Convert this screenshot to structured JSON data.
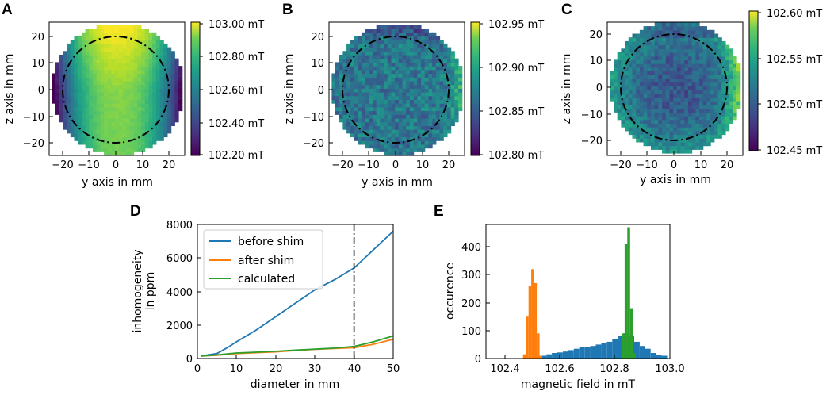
{
  "panels": [
    {
      "label": "A",
      "xlabel": "y axis in mm",
      "ylabel": "z axis in mm",
      "xticks": [
        "−20",
        "−10",
        "0",
        "10",
        "20"
      ],
      "yticks": [
        "20",
        "10",
        "0",
        "−10",
        "−20"
      ],
      "colorbar": [
        "103.00 mT",
        "102.80 mT",
        "102.60 mT",
        "102.40 mT",
        "102.20 mT"
      ]
    },
    {
      "label": "B",
      "xlabel": "y axis in mm",
      "ylabel": "z axis in mm",
      "xticks": [
        "−20",
        "−10",
        "0",
        "10",
        "20"
      ],
      "yticks": [
        "20",
        "10",
        "0",
        "−10",
        "−20"
      ],
      "colorbar": [
        "102.95 mT",
        "102.90 mT",
        "102.85 mT",
        "102.80 mT"
      ]
    },
    {
      "label": "C",
      "xlabel": "y axis in mm",
      "ylabel": "z axis in mm",
      "xticks": [
        "−20",
        "−10",
        "0",
        "10",
        "20"
      ],
      "yticks": [
        "20",
        "10",
        "0",
        "−10",
        "−20"
      ],
      "colorbar": [
        "102.60 mT",
        "102.55 mT",
        "102.50 mT",
        "102.45 mT"
      ]
    }
  ],
  "chart_data": [
    {
      "panel": "A",
      "type": "heatmap",
      "title": "",
      "xlabel": "y axis in mm",
      "ylabel": "z axis in mm",
      "xlim": [
        -26,
        25
      ],
      "ylim": [
        -25,
        25
      ],
      "data_radius_mm": 25,
      "circle_diameter_mm": 40,
      "colormap": "viridis",
      "colorbar_range_mT": [
        102.2,
        103.0
      ],
      "description_values": {
        "center": 102.86,
        "top_center": 103.0,
        "left_right_edges": 102.2
      }
    },
    {
      "panel": "B",
      "type": "heatmap",
      "xlabel": "y axis in mm",
      "ylabel": "z axis in mm",
      "xlim": [
        -26,
        25
      ],
      "ylim": [
        -25,
        25
      ],
      "data_radius_mm": 25,
      "circle_diameter_mm": 40,
      "colormap": "viridis",
      "colorbar_range_mT": [
        102.8,
        102.95
      ],
      "description_values": {
        "mean": 102.855,
        "top_edge": 102.8,
        "right_edge": 102.9
      }
    },
    {
      "panel": "C",
      "type": "heatmap",
      "xlabel": "y axis in mm",
      "ylabel": "z axis in mm",
      "xlim": [
        -26,
        25
      ],
      "ylim": [
        -25,
        25
      ],
      "data_radius_mm": 25,
      "circle_diameter_mm": 40,
      "colormap": "viridis",
      "colorbar_range_mT": [
        102.45,
        102.6
      ],
      "description_values": {
        "center": 102.49,
        "edge": 102.52,
        "right_edge": 102.57
      }
    },
    {
      "panel": "D",
      "type": "line",
      "xlabel": "diameter in mm",
      "ylabel": "inhomogeneity\nin ppm",
      "xlim": [
        0,
        50
      ],
      "ylim": [
        0,
        8000
      ],
      "xticks": [
        "0",
        "10",
        "20",
        "30",
        "40",
        "50"
      ],
      "yticks": [
        "0",
        "2000",
        "4000",
        "6000",
        "8000"
      ],
      "vline_x": 40,
      "legend": [
        "before shim",
        "after shim",
        "calculated"
      ],
      "series": [
        {
          "name": "before shim",
          "color": "#1f77b4",
          "x": [
            1,
            5,
            8,
            10,
            15,
            20,
            25,
            30,
            35,
            40,
            45,
            50
          ],
          "y": [
            150,
            300,
            700,
            1000,
            1700,
            2500,
            3300,
            4100,
            4700,
            5400,
            6500,
            7600
          ]
        },
        {
          "name": "after shim",
          "color": "#ff7f0e",
          "x": [
            1,
            5,
            10,
            15,
            20,
            25,
            30,
            35,
            40,
            45,
            50
          ],
          "y": [
            150,
            200,
            300,
            350,
            400,
            480,
            550,
            600,
            650,
            850,
            1150
          ]
        },
        {
          "name": "calculated",
          "color": "#2ca02c",
          "x": [
            1,
            5,
            10,
            15,
            20,
            25,
            30,
            35,
            40,
            45,
            50
          ],
          "y": [
            150,
            220,
            330,
            380,
            430,
            500,
            560,
            620,
            720,
            1000,
            1350
          ]
        }
      ]
    },
    {
      "panel": "E",
      "type": "bar",
      "xlabel": "magnetic field in mT",
      "ylabel": "occurence",
      "xlim": [
        102.33,
        103.0
      ],
      "ylim": [
        0,
        480
      ],
      "xticks": [
        "102.4",
        "102.6",
        "102.8",
        "103.0"
      ],
      "yticks": [
        "0",
        "100",
        "200",
        "300",
        "400"
      ],
      "series": [
        {
          "name": "before shim",
          "color": "#1f77b4",
          "bins": [
            102.5,
            102.52,
            102.54,
            102.56,
            102.58,
            102.6,
            102.62,
            102.64,
            102.66,
            102.68,
            102.7,
            102.72,
            102.74,
            102.76,
            102.78,
            102.8,
            102.82,
            102.84,
            102.86,
            102.88,
            102.9,
            102.92,
            102.94,
            102.96,
            102.98
          ],
          "values": [
            2,
            5,
            10,
            15,
            20,
            22,
            25,
            30,
            35,
            40,
            40,
            45,
            50,
            55,
            60,
            70,
            80,
            90,
            80,
            60,
            45,
            35,
            20,
            12,
            10
          ]
        },
        {
          "name": "after shim",
          "color": "#ff7f0e",
          "bins": [
            102.47,
            102.48,
            102.49,
            102.5,
            102.51,
            102.52,
            102.53
          ],
          "values": [
            15,
            150,
            260,
            320,
            270,
            90,
            10
          ]
        },
        {
          "name": "calculated",
          "color": "#2ca02c",
          "bins": [
            102.83,
            102.84,
            102.85,
            102.86,
            102.87
          ],
          "values": [
            90,
            410,
            470,
            180,
            20
          ]
        }
      ]
    }
  ],
  "lower": {
    "d": {
      "label": "D",
      "xlabel": "diameter in mm",
      "ylabel_1": "inhomogeneity",
      "ylabel_2": "in ppm",
      "xticks": [
        "0",
        "10",
        "20",
        "30",
        "40",
        "50"
      ],
      "yticks": [
        "0",
        "2000",
        "4000",
        "6000",
        "8000"
      ],
      "legend": [
        "before shim",
        "after shim",
        "calculated"
      ]
    },
    "e": {
      "label": "E",
      "xlabel": "magnetic field in mT",
      "ylabel": "occurence",
      "xticks": [
        "102.4",
        "102.6",
        "102.8",
        "103.0"
      ],
      "yticks": [
        "0",
        "100",
        "200",
        "300",
        "400"
      ]
    }
  }
}
